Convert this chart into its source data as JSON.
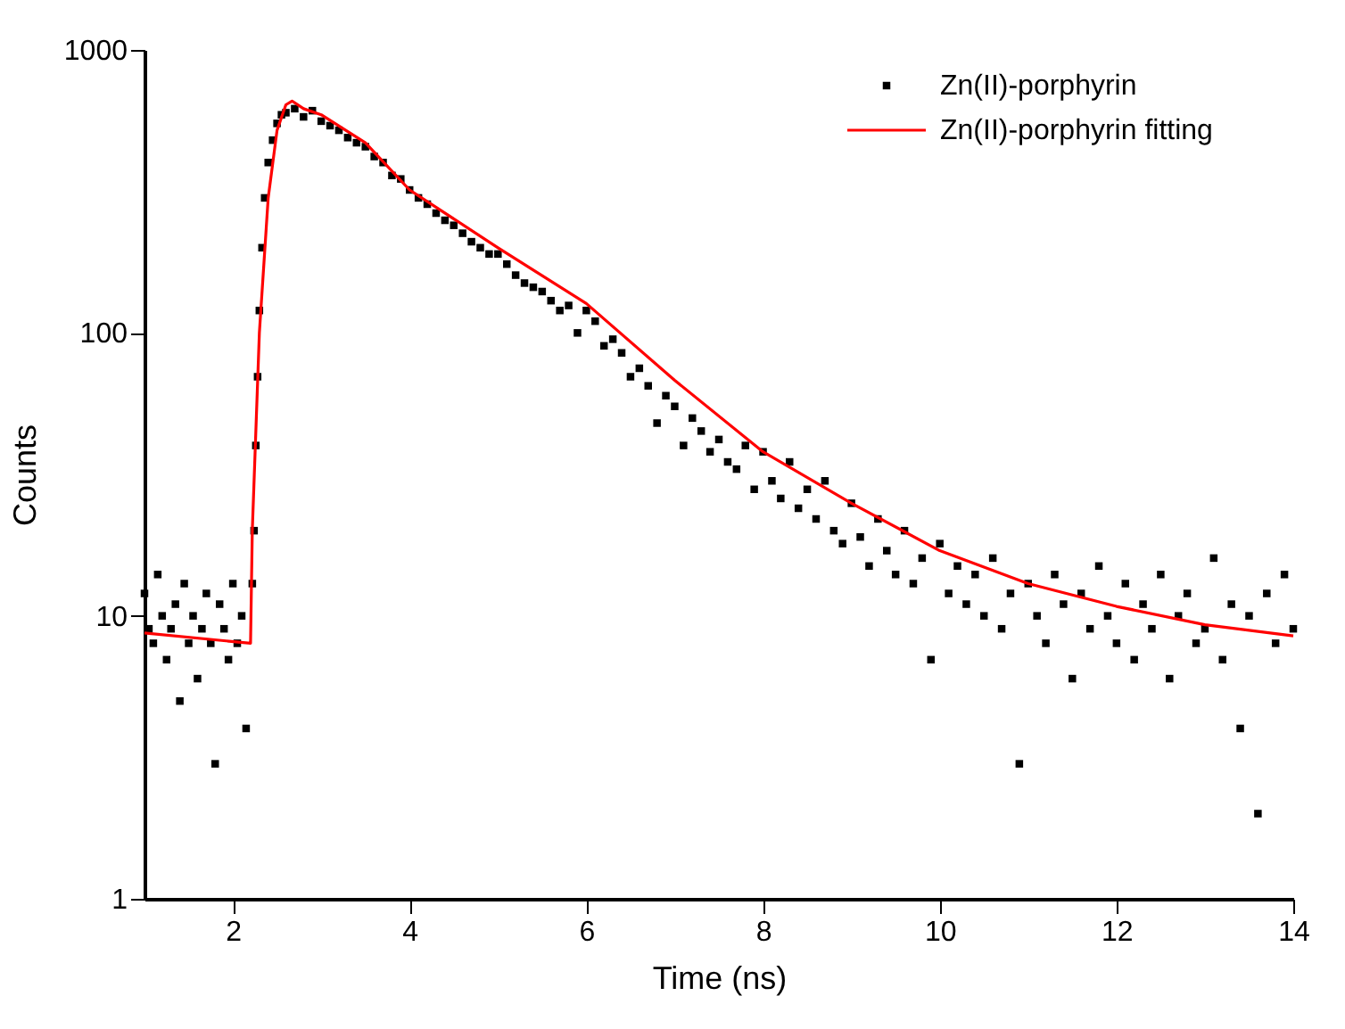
{
  "chart_data": {
    "type": "scatter",
    "xlabel": "Time (ns)",
    "ylabel": "Counts",
    "xlim": [
      1,
      14
    ],
    "ylim": [
      1,
      1000
    ],
    "xticks": [
      2,
      4,
      6,
      8,
      10,
      12,
      14
    ],
    "yticks": [
      1,
      10,
      100,
      1000
    ],
    "log": "y",
    "grid": false,
    "legend": "top right",
    "series": [
      {
        "name": "Zn(II)-porphyrin",
        "marker": "square",
        "color": "#000000",
        "x": [
          1.0,
          1.05,
          1.1,
          1.15,
          1.2,
          1.25,
          1.3,
          1.35,
          1.4,
          1.45,
          1.5,
          1.55,
          1.6,
          1.65,
          1.7,
          1.75,
          1.8,
          1.85,
          1.9,
          1.95,
          2.0,
          2.05,
          2.1,
          2.15,
          2.22,
          2.24,
          2.26,
          2.28,
          2.3,
          2.33,
          2.36,
          2.4,
          2.45,
          2.5,
          2.55,
          2.6,
          2.7,
          2.8,
          2.9,
          3.0,
          3.1,
          3.2,
          3.3,
          3.4,
          3.5,
          3.6,
          3.7,
          3.8,
          3.9,
          4.0,
          4.1,
          4.2,
          4.3,
          4.4,
          4.5,
          4.6,
          4.7,
          4.8,
          4.9,
          5.0,
          5.1,
          5.2,
          5.3,
          5.4,
          5.5,
          5.6,
          5.7,
          5.8,
          5.9,
          6.0,
          6.1,
          6.2,
          6.3,
          6.4,
          6.5,
          6.6,
          6.7,
          6.8,
          6.9,
          7.0,
          7.1,
          7.2,
          7.3,
          7.4,
          7.5,
          7.6,
          7.7,
          7.8,
          7.9,
          8.0,
          8.1,
          8.2,
          8.3,
          8.4,
          8.5,
          8.6,
          8.7,
          8.8,
          8.9,
          9.0,
          9.1,
          9.2,
          9.3,
          9.4,
          9.5,
          9.6,
          9.7,
          9.8,
          9.9,
          10.0,
          10.1,
          10.2,
          10.3,
          10.4,
          10.5,
          10.6,
          10.7,
          10.8,
          10.9,
          11.0,
          11.1,
          11.2,
          11.3,
          11.4,
          11.5,
          11.6,
          11.7,
          11.8,
          11.9,
          12.0,
          12.1,
          12.2,
          12.3,
          12.4,
          12.5,
          12.6,
          12.7,
          12.8,
          12.9,
          13.0,
          13.1,
          13.2,
          13.3,
          13.4,
          13.5,
          13.6,
          13.7,
          13.8,
          13.9,
          14.0
        ],
        "values": [
          12,
          9,
          8,
          14,
          10,
          7,
          9,
          11,
          5,
          13,
          8,
          10,
          6,
          9,
          12,
          8,
          3,
          11,
          9,
          7,
          13,
          8,
          10,
          4,
          13,
          20,
          40,
          70,
          120,
          200,
          300,
          400,
          480,
          550,
          590,
          600,
          620,
          580,
          610,
          560,
          540,
          520,
          490,
          470,
          455,
          420,
          400,
          360,
          350,
          320,
          300,
          285,
          265,
          250,
          240,
          225,
          210,
          200,
          190,
          190,
          175,
          160,
          150,
          145,
          140,
          130,
          120,
          125,
          100,
          120,
          110,
          90,
          95,
          85,
          70,
          75,
          65,
          48,
          60,
          55,
          40,
          50,
          45,
          38,
          42,
          35,
          33,
          40,
          28,
          38,
          30,
          26,
          35,
          24,
          28,
          22,
          30,
          20,
          18,
          25,
          19,
          15,
          22,
          17,
          14,
          20,
          13,
          16,
          7,
          18,
          12,
          15,
          11,
          14,
          10,
          16,
          9,
          12,
          3,
          13,
          10,
          8,
          14,
          11,
          6,
          12,
          9,
          15,
          10,
          8,
          13,
          7,
          11,
          9,
          14,
          6,
          10,
          12,
          8,
          9,
          16,
          7,
          11,
          4,
          10,
          2,
          12,
          8,
          14,
          9
        ]
      },
      {
        "name": "Zn(II)-porphyrin fitting",
        "type": "line",
        "line_style": "solid",
        "color": "#ff0000",
        "x": [
          1,
          2.2,
          2.22,
          2.3,
          2.4,
          2.5,
          2.6,
          2.67,
          2.8,
          3,
          3.5,
          4,
          5,
          6,
          7,
          8,
          9,
          10,
          11,
          12,
          13,
          14
        ],
        "values": [
          8.7,
          8,
          20,
          100,
          300,
          520,
          640,
          660,
          620,
          590,
          470,
          320,
          200,
          127,
          68,
          38,
          25,
          17,
          13,
          10.8,
          9.3,
          8.5
        ]
      }
    ]
  }
}
